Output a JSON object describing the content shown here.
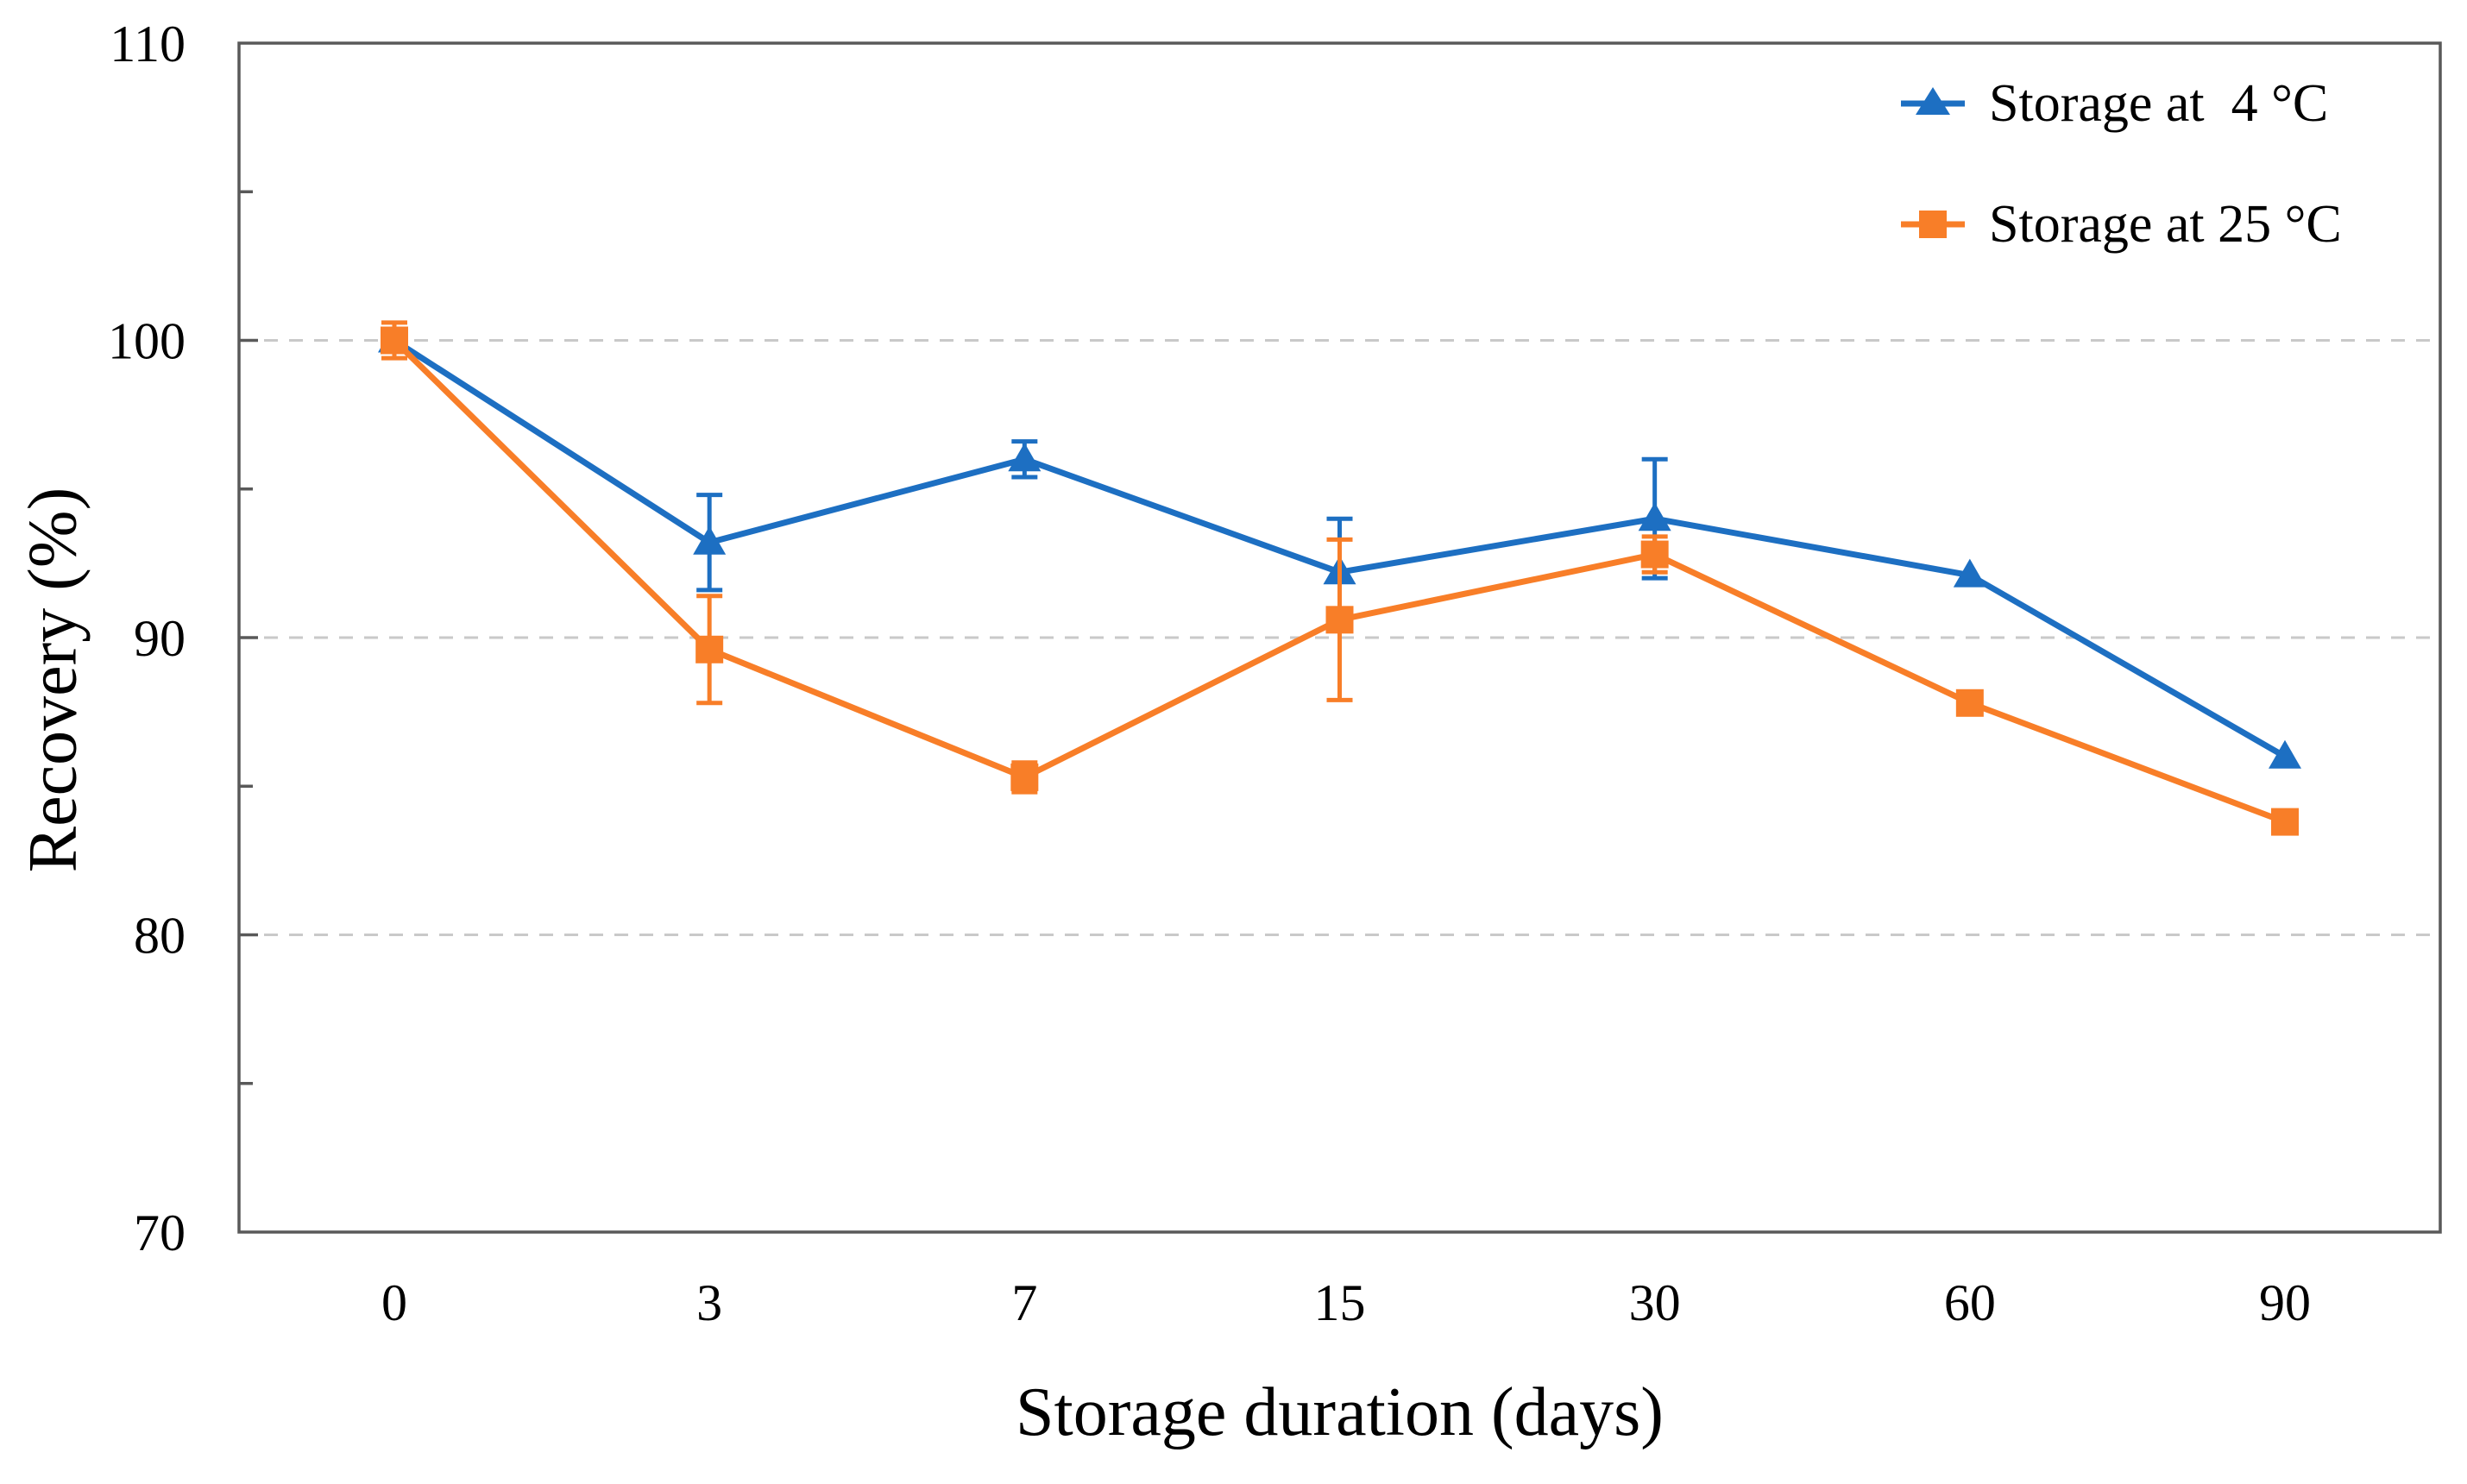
{
  "figure": {
    "background": "#ffffff"
  },
  "chart_data": {
    "type": "line",
    "title": "",
    "xlabel": "Storage duration (days)",
    "ylabel": "Recovery (%)",
    "categories": [
      "0",
      "3",
      "7",
      "15",
      "30",
      "60",
      "90"
    ],
    "ylim": [
      70,
      110
    ],
    "y_major_ticks": [
      70,
      80,
      90,
      100,
      110
    ],
    "y_tick_labels": [
      "70",
      "80",
      "90",
      "100",
      "110"
    ],
    "y_minor_tick_step": 5,
    "gridlines_y": [
      80,
      90,
      100
    ],
    "grid_style": "dashed-horizontal",
    "legend_position": "top-right-inside",
    "series": [
      {
        "name": "Storage at  4 °C",
        "marker": "triangle",
        "color": "#1D6FC2",
        "values": [
          100.0,
          93.2,
          96.0,
          92.2,
          94.0,
          92.1,
          86.0
        ],
        "errors": [
          0.3,
          1.6,
          0.6,
          1.8,
          2.0,
          0,
          0
        ]
      },
      {
        "name": "Storage at 25 °C",
        "marker": "square",
        "color": "#F87E28",
        "values": [
          100.0,
          89.6,
          85.3,
          90.6,
          92.8,
          87.8,
          83.8
        ],
        "errors": [
          0.6,
          1.8,
          0.5,
          2.7,
          0.6,
          0,
          0
        ]
      }
    ]
  },
  "style": {
    "grid_color": "#C9C9C9",
    "axis_color": "#595959",
    "text_color": "#000000"
  }
}
